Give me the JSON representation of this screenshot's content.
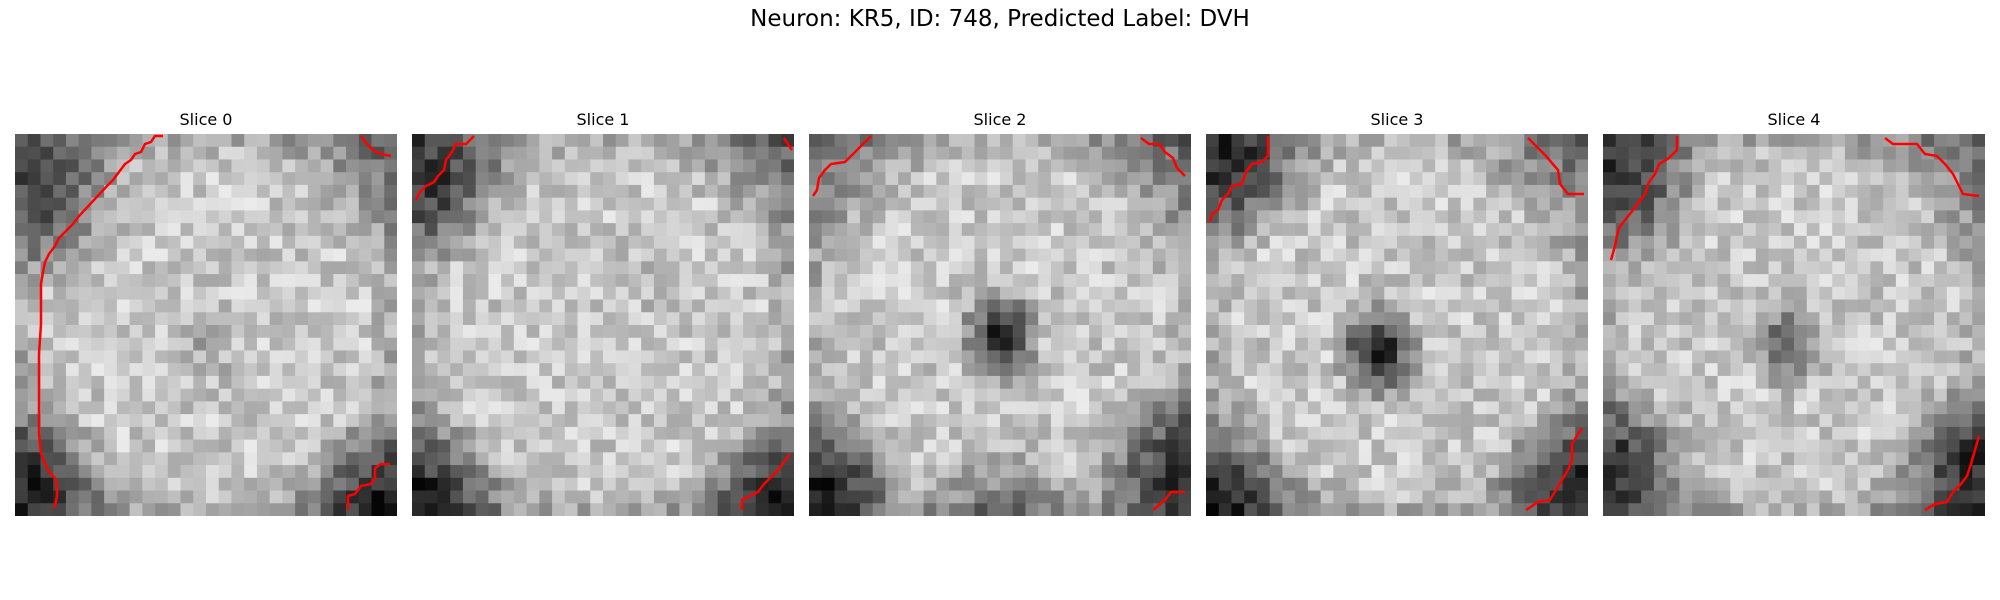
{
  "figure": {
    "title": "Neuron: KR5, ID: 748, Predicted Label: DVH"
  },
  "contour_color": "#ff0000",
  "colormap": "gray",
  "slices": [
    {
      "title": "Slice 0",
      "blob": {
        "strength": 0.15
      }
    },
    {
      "title": "Slice 1",
      "blob": {
        "strength": 0.1
      }
    },
    {
      "title": "Slice 2",
      "blob": {
        "strength": 0.85
      }
    },
    {
      "title": "Slice 3",
      "blob": {
        "strength": 0.95
      }
    },
    {
      "title": "Slice 4",
      "blob": {
        "strength": 0.55
      }
    }
  ]
}
